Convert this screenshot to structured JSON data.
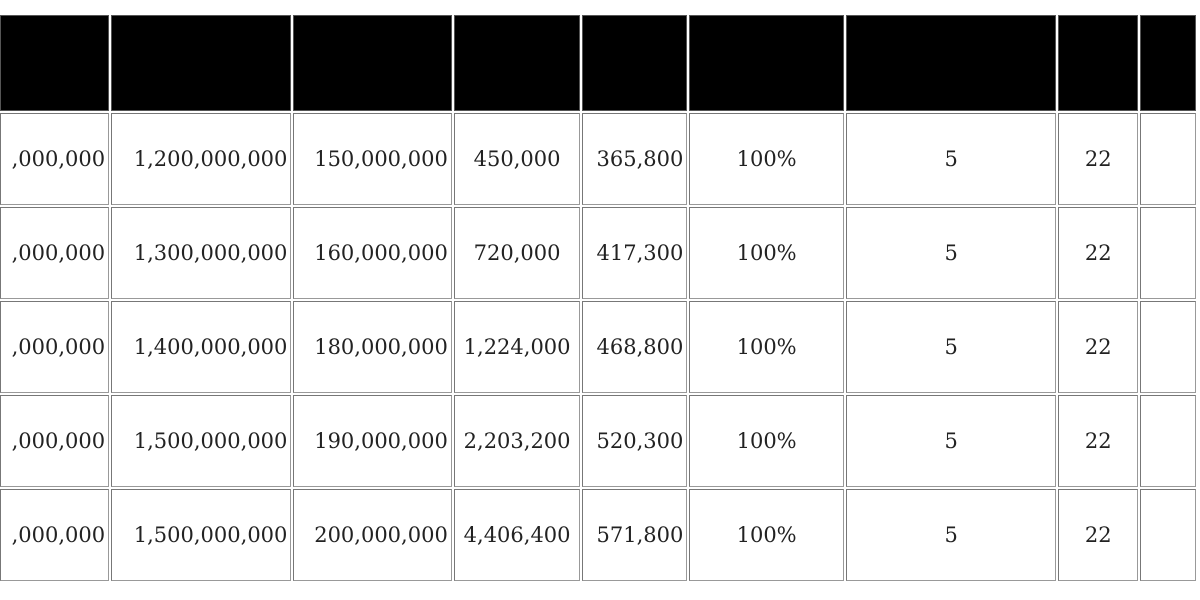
{
  "table": {
    "headers": [
      "",
      "",
      "",
      "",
      "",
      "",
      "",
      "",
      ""
    ],
    "rows": [
      [
        ",000,000",
        "1,200,000,000",
        "150,000,000",
        "450,000",
        "365,800",
        "100%",
        "5",
        "22",
        ""
      ],
      [
        ",000,000",
        "1,300,000,000",
        "160,000,000",
        "720,000",
        "417,300",
        "100%",
        "5",
        "22",
        ""
      ],
      [
        ",000,000",
        "1,400,000,000",
        "180,000,000",
        "1,224,000",
        "468,800",
        "100%",
        "5",
        "22",
        ""
      ],
      [
        ",000,000",
        "1,500,000,000",
        "190,000,000",
        "2,203,200",
        "520,300",
        "100%",
        "5",
        "22",
        ""
      ],
      [
        ",000,000",
        "1,500,000,000",
        "200,000,000",
        "4,406,400",
        "571,800",
        "100%",
        "5",
        "22",
        ""
      ]
    ],
    "header_color": "#000000"
  }
}
